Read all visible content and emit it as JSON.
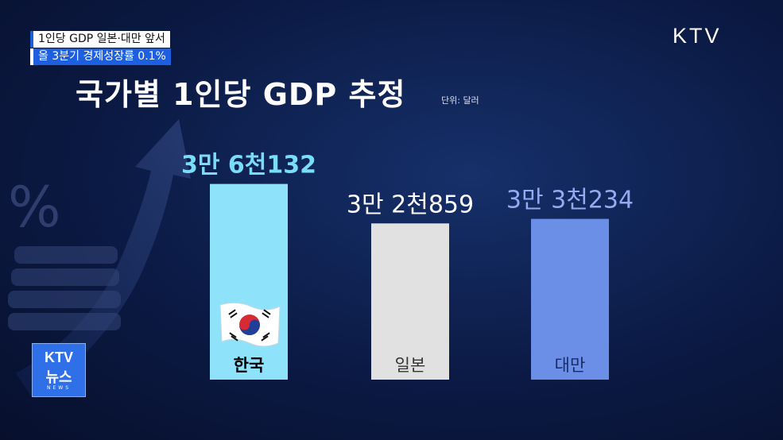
{
  "caption": {
    "line1": "1인당 GDP 일본·대만 앞서",
    "line2": "올 3분기 경제성장률 0.1%"
  },
  "brand": "KTV",
  "badge": {
    "line1": "KTV",
    "line2": "뉴스",
    "line3": "NEWS"
  },
  "colors": {
    "korea": "#8ee3fb",
    "japan": "#e1e1e1",
    "taiwan": "#6b8fe6",
    "korea_label": "#79dcf8",
    "japan_label": "#ffffff",
    "taiwan_label": "#95aaf2"
  },
  "chart_data": {
    "type": "bar",
    "title": "국가별 1인당 GDP 추정",
    "unit": "단위: 달러",
    "categories": [
      "한국",
      "일본",
      "대만"
    ],
    "values": [
      36132,
      32859,
      33234
    ],
    "value_labels": [
      "3만 6천132",
      "3만 2천859",
      "3만 3천234"
    ],
    "bar_colors": [
      "#8ee3fb",
      "#e1e1e1",
      "#6b8fe6"
    ],
    "label_colors": [
      "#79dcf8",
      "#ffffff",
      "#95aaf2"
    ],
    "category_label_colors": [
      "#000000",
      "#333333",
      "#1a2a66"
    ],
    "flag_icon": "korea-flag-icon",
    "grid": false,
    "legend": "none"
  }
}
